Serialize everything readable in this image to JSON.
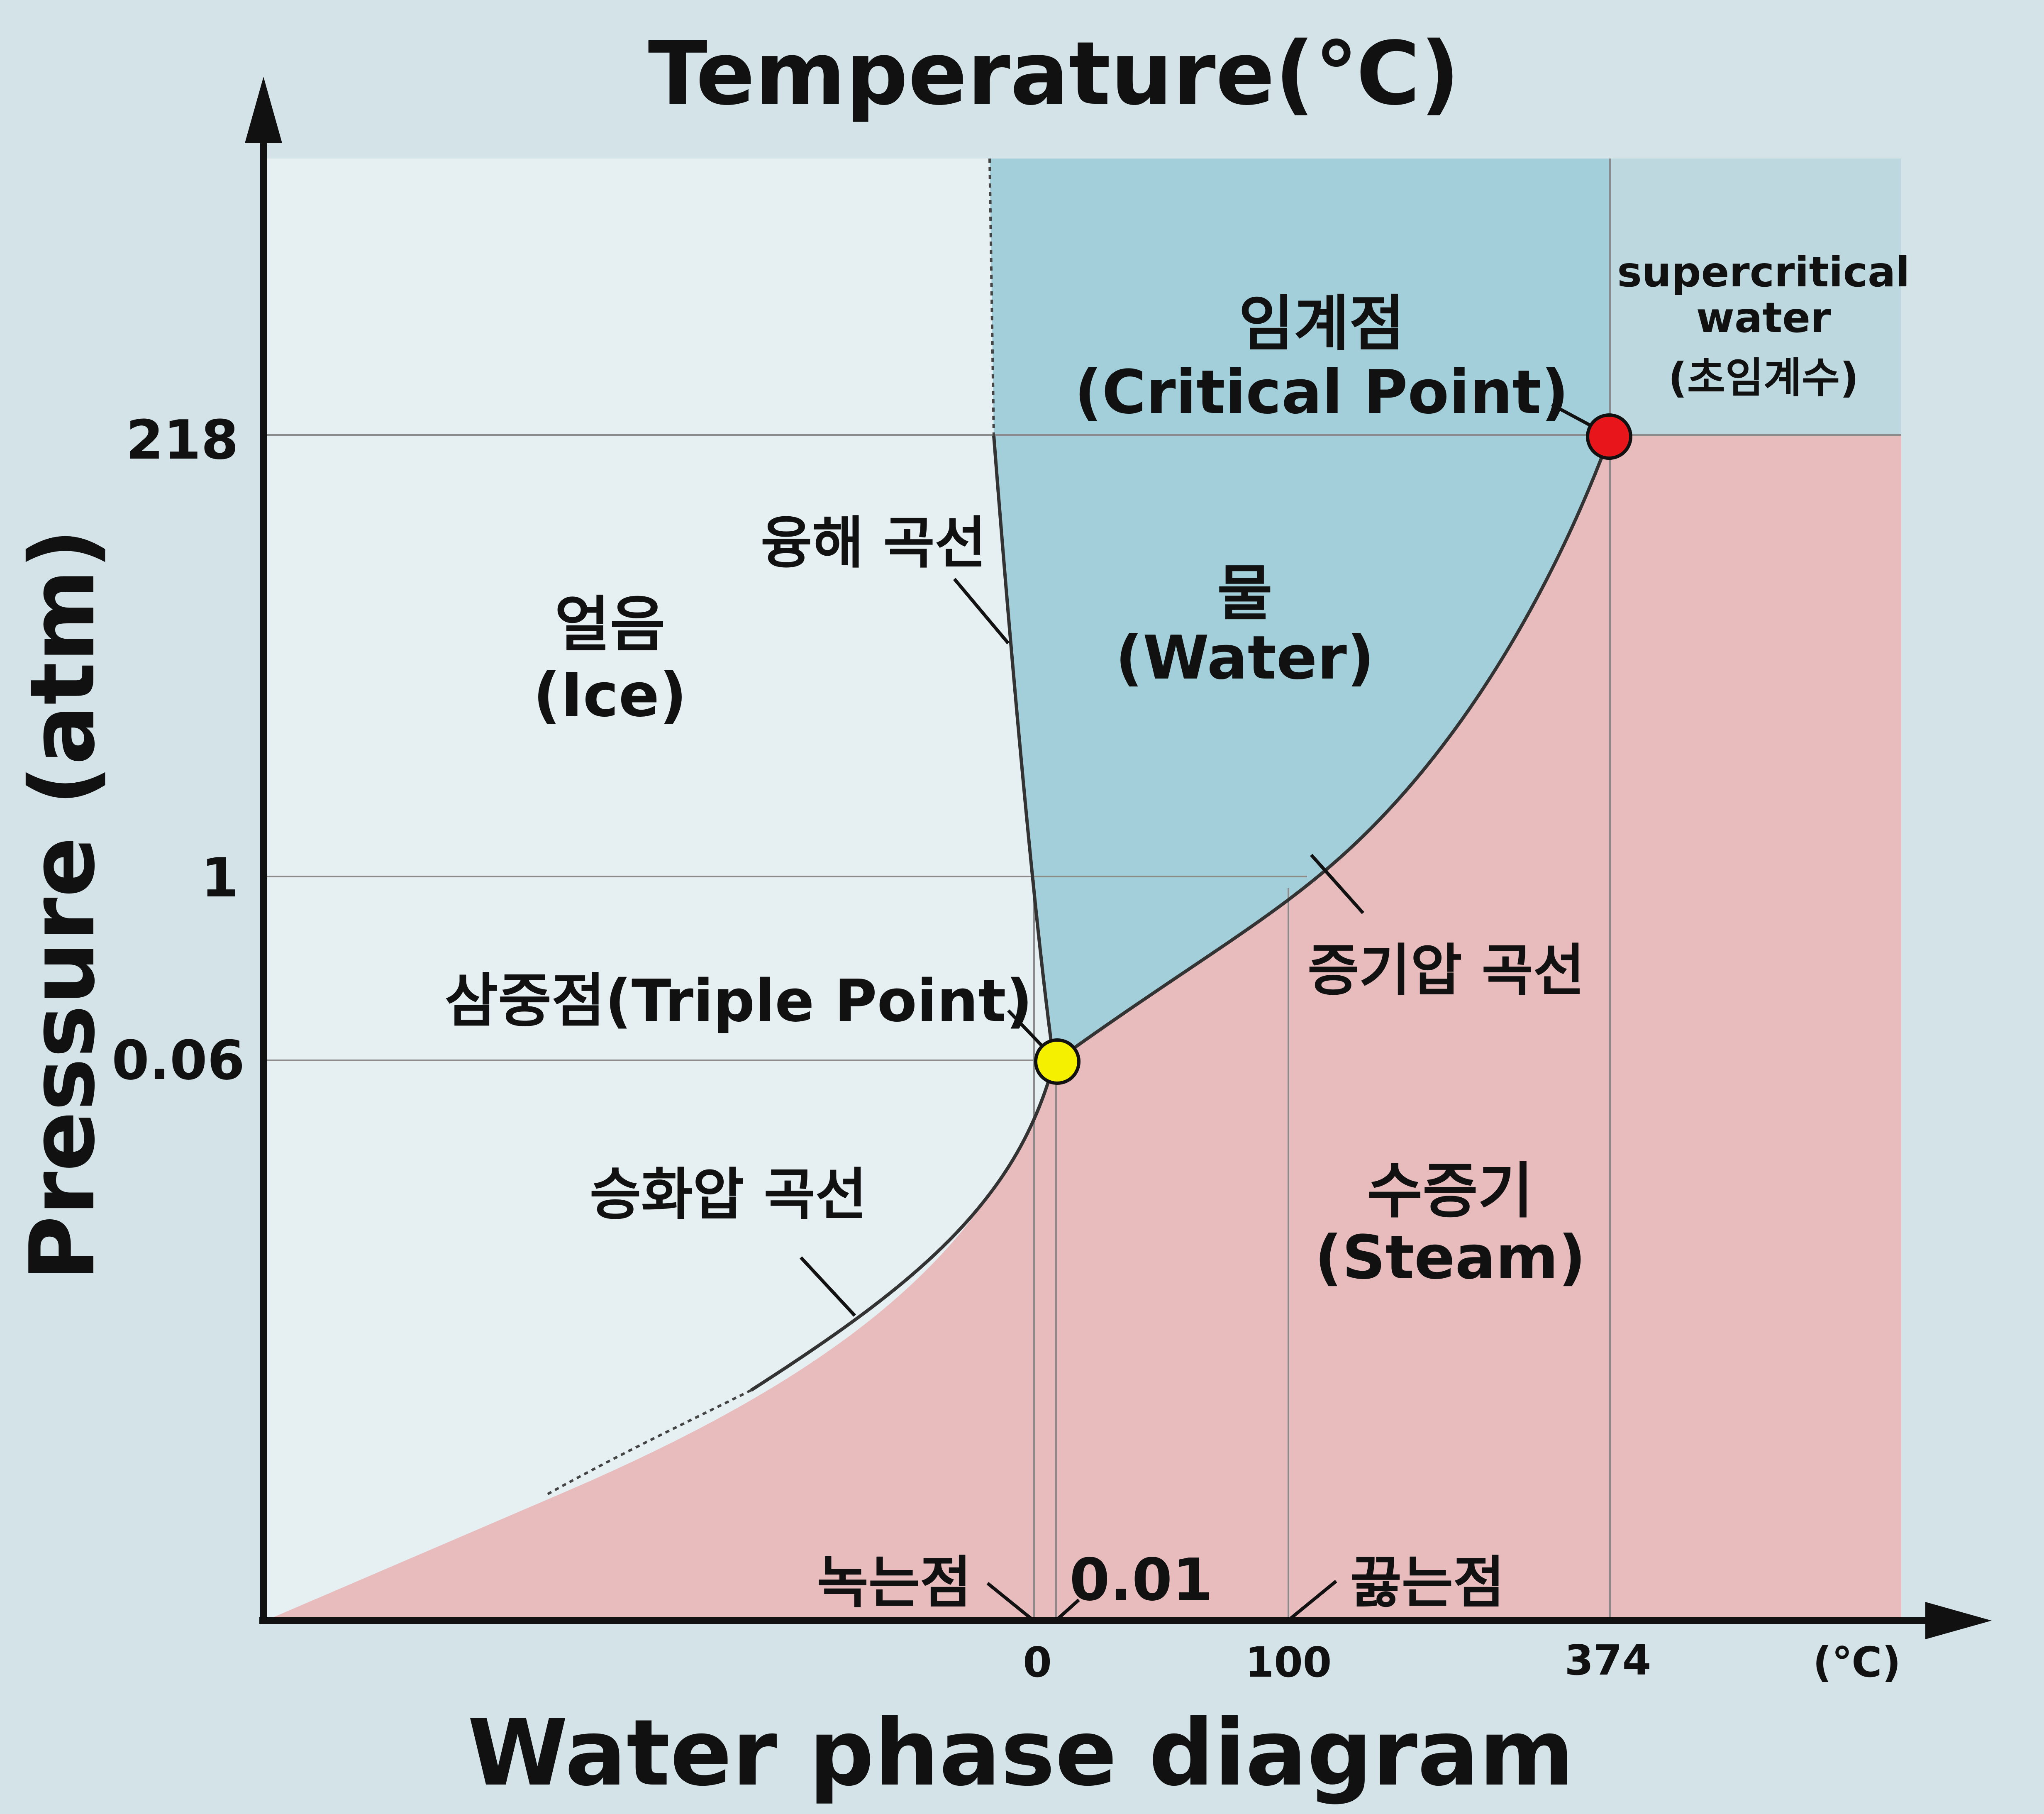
{
  "title_top": "Temperature(℃)",
  "title_bottom": "Water phase diagram",
  "y_axis_label": "Pressure (atm)",
  "y_ticks": [
    "218",
    "1",
    "0.06"
  ],
  "x_ticks": [
    "0",
    "100",
    "374"
  ],
  "x_unit": "(℃)",
  "regions": {
    "ice_ko": "얼음",
    "ice_en": "(Ice)",
    "water_ko": "물",
    "water_en": "(Water)",
    "steam_ko": "수증기",
    "steam_en": "(Steam)",
    "supercritical_line1": "supercritical",
    "supercritical_line2": "water",
    "supercritical_ko": "(초임계수)"
  },
  "curves": {
    "melting_curve": "융해 곡선",
    "vapor_curve": "증기압 곡선",
    "sublimation_curve": "승화압 곡선"
  },
  "points": {
    "critical_ko": "임계점",
    "critical_en": "(Critical Point)",
    "triple": "삼중점(Triple Point)",
    "melting_point": "녹는점",
    "triple_temp": "0.01",
    "boiling_point": "끓는점"
  },
  "colors": {
    "background": "#d3e3e8",
    "ice": "#e6eff2",
    "water": "#a3cfda",
    "steam": "#e8bcbd",
    "supercritical": "#bed8e0",
    "critical_point": "#e8161b",
    "triple_point": "#f5f000"
  }
}
